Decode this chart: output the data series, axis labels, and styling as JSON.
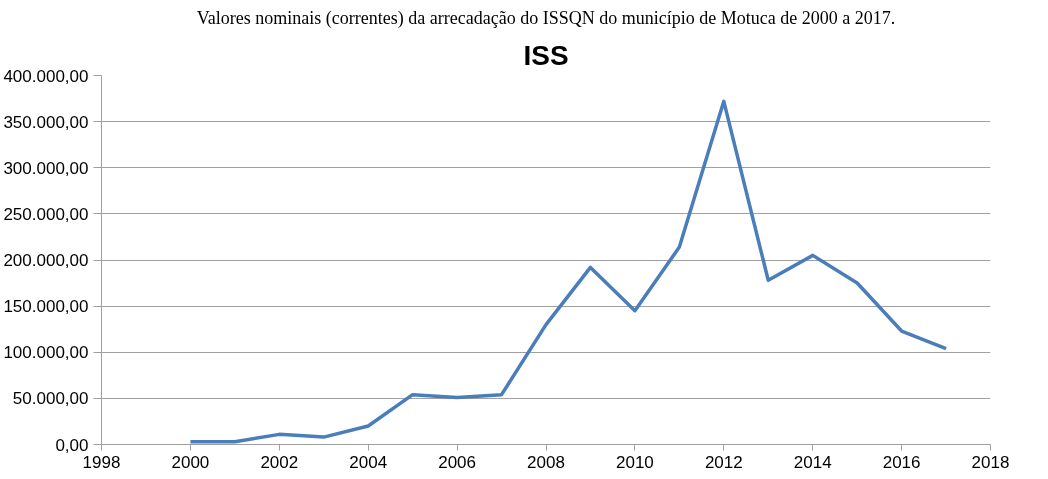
{
  "chart_data": {
    "type": "line",
    "title": "ISS",
    "annotations": [
      "Valores nominais (correntes) da arrecadação do ISSQN do município de Motuca de 2000 a 2017."
    ],
    "x": [
      2000,
      2001,
      2002,
      2003,
      2004,
      2005,
      2006,
      2007,
      2008,
      2009,
      2010,
      2011,
      2012,
      2013,
      2014,
      2015,
      2016,
      2017
    ],
    "series": [
      {
        "color": "#4a7ebb",
        "values": [
          3000,
          3000,
          11000,
          8000,
          20000,
          54000,
          51000,
          54000,
          130000,
          192000,
          145000,
          214000,
          372000,
          178000,
          205000,
          175000,
          123000,
          104000
        ]
      }
    ],
    "xlim": [
      1998,
      2018
    ],
    "xticks": [
      1998,
      2000,
      2002,
      2004,
      2006,
      2008,
      2010,
      2012,
      2014,
      2016,
      2018
    ],
    "ylim": [
      0,
      400000
    ],
    "yticks": [
      {
        "value": 0,
        "label": "0,00"
      },
      {
        "value": 50000,
        "label": "50.000,00"
      },
      {
        "value": 100000,
        "label": "100.000,00"
      },
      {
        "value": 150000,
        "label": "150.000,00"
      },
      {
        "value": 200000,
        "label": "200.000,00"
      },
      {
        "value": 250000,
        "label": "250.000,00"
      },
      {
        "value": 300000,
        "label": "300.000,00"
      },
      {
        "value": 350000,
        "label": "350.000,00"
      },
      {
        "value": 400000,
        "label": "400.000,00"
      }
    ],
    "grid": "y",
    "marker": "none",
    "line_style": "solid"
  }
}
